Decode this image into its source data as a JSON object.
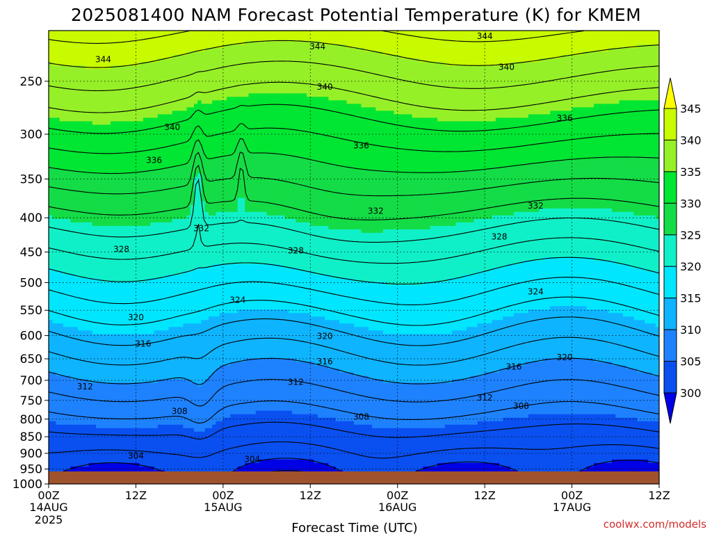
{
  "chart_data": {
    "type": "heatmap",
    "title": "2025081400 NAM Forecast Potential Temperature (K) for KMEM",
    "xlabel": "Forecast Time (UTC)",
    "ylabel": "",
    "y_scale": "log-pressure",
    "y_ticks": [
      "250",
      "300",
      "350",
      "400",
      "450",
      "500",
      "550",
      "600",
      "650",
      "700",
      "750",
      "800",
      "850",
      "900",
      "950",
      "1000"
    ],
    "y_range_hPa": [
      210,
      1000
    ],
    "x_ticks": [
      {
        "label": "00Z",
        "date": "14AUG",
        "year": "2025"
      },
      {
        "label": "12Z",
        "date": "",
        "year": ""
      },
      {
        "label": "00Z",
        "date": "15AUG",
        "year": ""
      },
      {
        "label": "12Z",
        "date": "",
        "year": ""
      },
      {
        "label": "00Z",
        "date": "16AUG",
        "year": ""
      },
      {
        "label": "12Z",
        "date": "",
        "year": ""
      },
      {
        "label": "00Z",
        "date": "17AUG",
        "year": ""
      },
      {
        "label": "12Z",
        "date": "",
        "year": ""
      }
    ],
    "x_range_hours": [
      0,
      84
    ],
    "grid": true,
    "colorbar": {
      "levels": [
        "300",
        "305",
        "310",
        "315",
        "320",
        "325",
        "330",
        "335",
        "340",
        "345"
      ],
      "colors": [
        "#0000e6",
        "#0a50f0",
        "#1e82ff",
        "#0fb4ff",
        "#00e6ff",
        "#10f0c8",
        "#14dc46",
        "#00e632",
        "#96f028",
        "#c8fa00",
        "#ffff00"
      ],
      "extends": "both"
    },
    "contour_labels": [
      {
        "value": "344",
        "t": 7.5,
        "p": 232
      },
      {
        "value": "344",
        "t": 37,
        "p": 222
      },
      {
        "value": "344",
        "t": 60,
        "p": 214
      },
      {
        "value": "340",
        "t": 17,
        "p": 293
      },
      {
        "value": "340",
        "t": 38,
        "p": 255
      },
      {
        "value": "340",
        "t": 63,
        "p": 238
      },
      {
        "value": "336",
        "t": 14.5,
        "p": 328
      },
      {
        "value": "336",
        "t": 43,
        "p": 312
      },
      {
        "value": "336",
        "t": 71,
        "p": 284
      },
      {
        "value": "332",
        "t": 21,
        "p": 415
      },
      {
        "value": "332",
        "t": 45,
        "p": 391
      },
      {
        "value": "332",
        "t": 67,
        "p": 384
      },
      {
        "value": "328",
        "t": 10,
        "p": 446
      },
      {
        "value": "328",
        "t": 34,
        "p": 448
      },
      {
        "value": "328",
        "t": 62,
        "p": 427
      },
      {
        "value": "324",
        "t": 26,
        "p": 531
      },
      {
        "value": "324",
        "t": 67,
        "p": 516
      },
      {
        "value": "320",
        "t": 12,
        "p": 564
      },
      {
        "value": "320",
        "t": 38,
        "p": 601
      },
      {
        "value": "320",
        "t": 71,
        "p": 647
      },
      {
        "value": "316",
        "t": 13,
        "p": 617
      },
      {
        "value": "316",
        "t": 38,
        "p": 656
      },
      {
        "value": "316",
        "t": 64,
        "p": 668
      },
      {
        "value": "312",
        "t": 5,
        "p": 715
      },
      {
        "value": "312",
        "t": 34,
        "p": 704
      },
      {
        "value": "312",
        "t": 60,
        "p": 743
      },
      {
        "value": "308",
        "t": 18,
        "p": 779
      },
      {
        "value": "308",
        "t": 43,
        "p": 794
      },
      {
        "value": "308",
        "t": 65,
        "p": 765
      },
      {
        "value": "304",
        "t": 12,
        "p": 908
      },
      {
        "value": "304",
        "t": 28,
        "p": 918
      }
    ],
    "ground_color": "#a0522d"
  },
  "credit": "coolwx.com/models"
}
